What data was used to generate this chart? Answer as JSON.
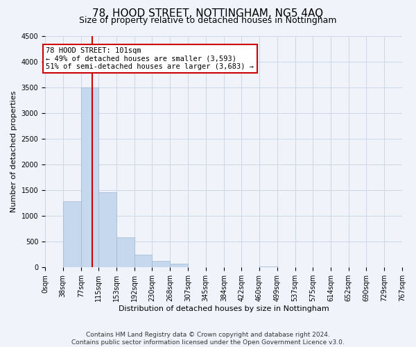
{
  "title": "78, HOOD STREET, NOTTINGHAM, NG5 4AQ",
  "subtitle": "Size of property relative to detached houses in Nottingham",
  "xlabel": "Distribution of detached houses by size in Nottingham",
  "ylabel": "Number of detached properties",
  "bar_edges": [
    0,
    38,
    77,
    115,
    153,
    192,
    230,
    268,
    307,
    345,
    384,
    422,
    460,
    499,
    537,
    575,
    614,
    652,
    690,
    729,
    767
  ],
  "bar_heights": [
    0,
    1280,
    3500,
    1460,
    580,
    240,
    130,
    70,
    0,
    0,
    0,
    0,
    20,
    0,
    0,
    0,
    0,
    0,
    0,
    0
  ],
  "bar_color": "#c5d8ed",
  "bar_edge_color": "#a0b8d0",
  "bar_linewidth": 0.5,
  "grid_color": "#d0d8e8",
  "bg_color": "#f0f4fa",
  "property_line_x": 101,
  "property_line_color": "#cc0000",
  "annotation_line1": "78 HOOD STREET: 101sqm",
  "annotation_line2": "← 49% of detached houses are smaller (3,593)",
  "annotation_line3": "51% of semi-detached houses are larger (3,683) →",
  "annotation_box_color": "#ffffff",
  "annotation_box_edge": "#cc0000",
  "tick_labels": [
    "0sqm",
    "38sqm",
    "77sqm",
    "115sqm",
    "153sqm",
    "192sqm",
    "230sqm",
    "268sqm",
    "307sqm",
    "345sqm",
    "384sqm",
    "422sqm",
    "460sqm",
    "499sqm",
    "537sqm",
    "575sqm",
    "614sqm",
    "652sqm",
    "690sqm",
    "729sqm",
    "767sqm"
  ],
  "ylim": [
    0,
    4500
  ],
  "yticks": [
    0,
    500,
    1000,
    1500,
    2000,
    2500,
    3000,
    3500,
    4000,
    4500
  ],
  "footnote": "Contains HM Land Registry data © Crown copyright and database right 2024.\nContains public sector information licensed under the Open Government Licence v3.0.",
  "title_fontsize": 11,
  "subtitle_fontsize": 9,
  "axis_label_fontsize": 8,
  "tick_fontsize": 7,
  "footnote_fontsize": 6.5
}
